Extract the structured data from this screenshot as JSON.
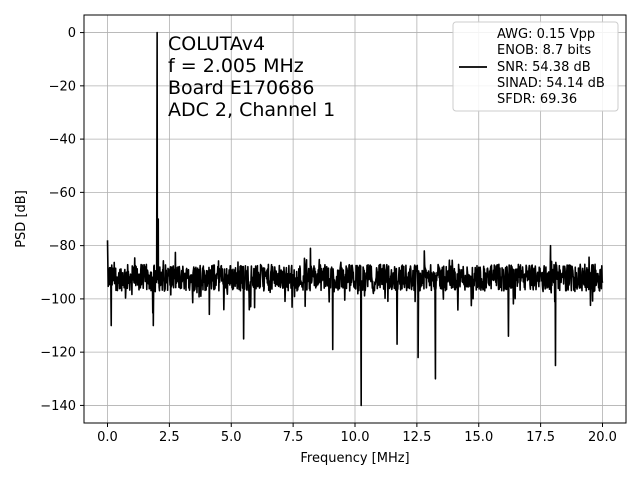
{
  "chart_data": {
    "type": "line",
    "xlabel": "Frequency [MHz]",
    "ylabel": "PSD [dB]",
    "xlim": [
      -0.95,
      20.95
    ],
    "ylim": [
      -146.6,
      6.6
    ],
    "xticks": [
      0.0,
      2.5,
      5.0,
      7.5,
      10.0,
      12.5,
      15.0,
      17.5,
      20.0
    ],
    "xtick_labels": [
      "0.0",
      "2.5",
      "5.0",
      "7.5",
      "10.0",
      "12.5",
      "15.0",
      "17.5",
      "20.0"
    ],
    "yticks": [
      0,
      -20,
      -40,
      -60,
      -80,
      -100,
      -120,
      -140
    ],
    "ytick_labels": [
      "0",
      "−20",
      "−40",
      "−60",
      "−80",
      "−100",
      "−120",
      "−140"
    ],
    "grid": true,
    "annotation_lines": [
      "COLUTAv4",
      "f = 2.005 MHz",
      "Board E170686",
      "ADC 2, Channel 1"
    ],
    "legend": {
      "placement": "top-right",
      "lines": [
        "AWG: 0.15 Vpp",
        "ENOB: 8.7 bits",
        "SNR: 54.38 dB",
        "SINAD: 54.14 dB",
        "SFDR: 69.36"
      ]
    },
    "series": [
      {
        "color": "#000000",
        "baseline_db": -92,
        "noise_spread_db": 5,
        "x_range": [
          0.0,
          20.0
        ],
        "peaks": [
          {
            "x": 2.005,
            "y": 0
          },
          {
            "x": 0.0,
            "y": -78
          },
          {
            "x": 2.05,
            "y": -70
          },
          {
            "x": 8.2,
            "y": -81
          },
          {
            "x": 12.8,
            "y": -82
          },
          {
            "x": 17.9,
            "y": -80
          }
        ],
        "dips": [
          {
            "x": 0.15,
            "y": -110
          },
          {
            "x": 1.85,
            "y": -110
          },
          {
            "x": 5.5,
            "y": -115
          },
          {
            "x": 9.1,
            "y": -119
          },
          {
            "x": 10.25,
            "y": -140
          },
          {
            "x": 11.7,
            "y": -117
          },
          {
            "x": 12.55,
            "y": -122
          },
          {
            "x": 13.25,
            "y": -130
          },
          {
            "x": 16.2,
            "y": -114
          },
          {
            "x": 18.1,
            "y": -125
          }
        ]
      }
    ]
  }
}
